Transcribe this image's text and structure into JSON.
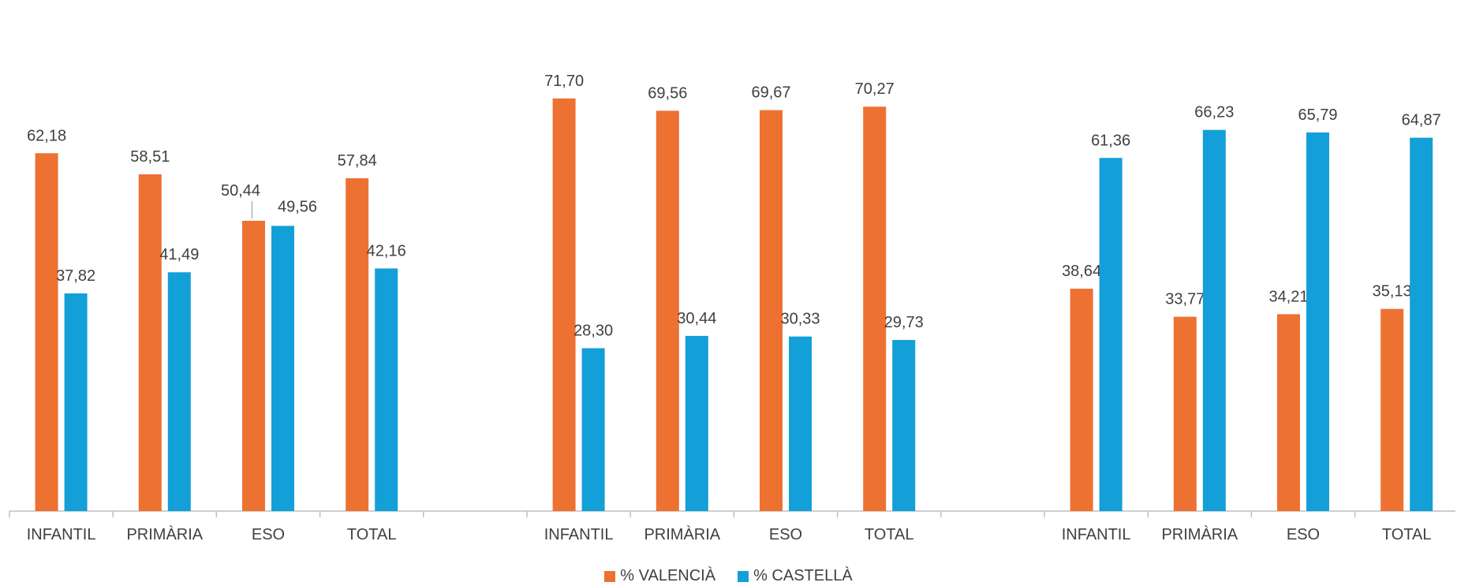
{
  "chart_data": {
    "type": "bar",
    "groups": [
      {
        "categories": [
          "INFANTIL",
          "PRIMÀRIA",
          "ESO",
          "TOTAL"
        ]
      },
      {
        "categories": [
          "INFANTIL",
          "PRIMÀRIA",
          "ESO",
          "TOTAL"
        ]
      },
      {
        "categories": [
          "INFANTIL",
          "PRIMÀRIA",
          "ESO",
          "TOTAL"
        ]
      }
    ],
    "series": [
      {
        "name": "% VALENCIÀ",
        "color": "#ED7232",
        "values": [
          62.18,
          58.51,
          50.44,
          57.84,
          71.7,
          69.56,
          69.67,
          70.27,
          38.64,
          33.77,
          34.21,
          35.13
        ],
        "labels": [
          "62,18",
          "58,51",
          "50,44",
          "57,84",
          "71,70",
          "69,56",
          "69,67",
          "70,27",
          "38,64",
          "33,77",
          "34,21",
          "35,13"
        ]
      },
      {
        "name": "% CASTELLÀ",
        "color": "#139FD8",
        "values": [
          37.82,
          41.49,
          49.56,
          42.16,
          28.3,
          30.44,
          30.33,
          29.73,
          61.36,
          66.23,
          65.79,
          64.87
        ],
        "labels": [
          "37,82",
          "41,49",
          "49,56",
          "42,16",
          "28,30",
          "30,44",
          "30,33",
          "29,73",
          "61,36",
          "66,23",
          "65,79",
          "64,87"
        ]
      }
    ],
    "ylim": [
      0,
      80
    ],
    "grid": false,
    "legend_position": "bottom",
    "title": "",
    "xlabel": "",
    "ylabel": ""
  }
}
